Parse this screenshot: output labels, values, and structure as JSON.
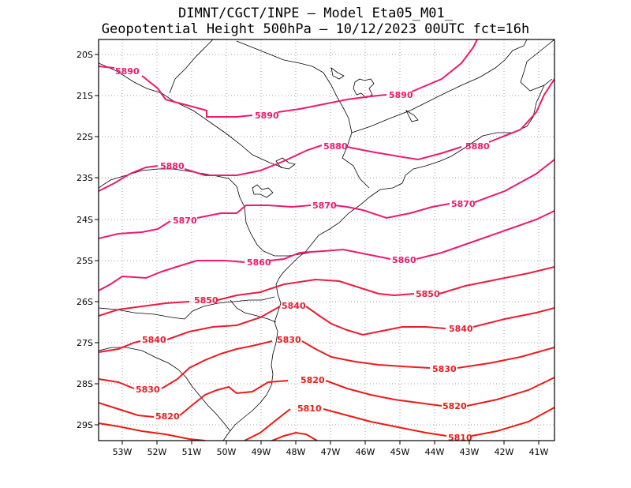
{
  "header": {
    "line1": "DIMNT/CGCT/INPE –  Model Eta05_M01_",
    "line2": "Geopotential Height 500hPa –  10/12/2023 00UTC fct=16h"
  },
  "axes": {
    "lat_labels": [
      "20S",
      "21S",
      "22S",
      "23S",
      "24S",
      "25S",
      "26S",
      "27S",
      "28S",
      "29S"
    ],
    "lon_labels": [
      "53W",
      "52W",
      "51W",
      "50W",
      "49W",
      "48W",
      "47W",
      "46W",
      "45W",
      "44W",
      "43W",
      "42W",
      "41W"
    ]
  },
  "colors": {
    "c5890": "#ee1a6e",
    "c5880": "#ee1a6e",
    "c5870": "#ee1a6e",
    "c5860": "#ee1a6e",
    "c5850": "#ee1a40",
    "c5840": "#ee1a30",
    "c5830": "#ee1a20",
    "c5820": "#ee1a18",
    "c5810": "#ee1a10",
    "coast": "#000000",
    "grid": "#999999"
  },
  "contours": [
    {
      "value": "5890",
      "label_main": "5890",
      "label_2": "5890",
      "label_3": "5890"
    },
    {
      "value": "5880",
      "label_main": "5880",
      "label_2": "5880",
      "label_3": "5880"
    },
    {
      "value": "5870",
      "label_main": "5870",
      "label_2": "5870",
      "label_3": "5870"
    },
    {
      "value": "5860",
      "label_main": "5860",
      "label_2": "5860"
    },
    {
      "value": "5850",
      "label_main": "5850",
      "label_2": "5850"
    },
    {
      "value": "5840",
      "label_main": "5840",
      "label_2": "5840",
      "label_3": "5840"
    },
    {
      "value": "5830",
      "label_main": "5830",
      "label_2": "5830",
      "label_3": "5830"
    },
    {
      "value": "5820",
      "label_main": "5820",
      "label_2": "5820",
      "label_3": "5820"
    },
    {
      "value": "5810",
      "label_main": "5810",
      "label_2": "5810"
    }
  ]
}
